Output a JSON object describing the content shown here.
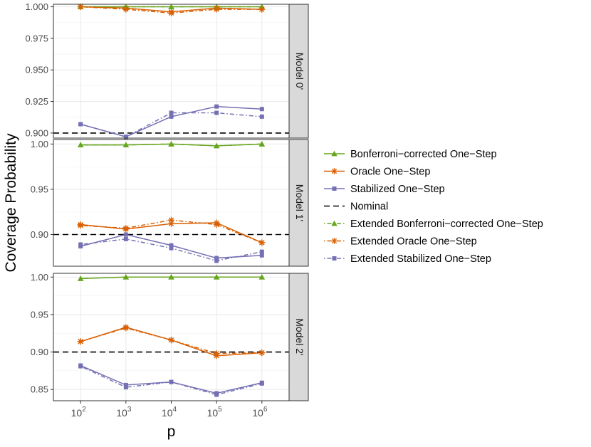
{
  "chart_data": {
    "type": "line",
    "ylabel": "Coverage Probability",
    "xlabel": "p",
    "x_values": [
      2,
      3,
      4,
      5,
      6
    ],
    "x_tick_base": "10",
    "x_tick_exponents": [
      "2",
      "3",
      "4",
      "5",
      "6"
    ],
    "nominal": 0.9,
    "colors": {
      "bonferroni": "#66a61e",
      "oracle": "#d95f02",
      "stabilized": "#7570b3",
      "nominal": "#000000",
      "strip": "#d9d9d9",
      "grid": "#ebebeb"
    },
    "legend": {
      "position": "right",
      "entries": [
        {
          "label": "Bonferroni−corrected One−Step",
          "key": "bonferroni",
          "style": "solid",
          "marker": "triangle"
        },
        {
          "label": "Oracle One−Step",
          "key": "oracle",
          "style": "solid",
          "marker": "star"
        },
        {
          "label": "Stabilized One−Step",
          "key": "stabilized",
          "style": "solid",
          "marker": "square"
        },
        {
          "label": "Nominal",
          "key": "nominal",
          "style": "dashed",
          "marker": "none"
        },
        {
          "label": "Extended Bonferroni−corrected One−Step",
          "key": "bonferroni",
          "style": "dotdash",
          "marker": "triangle"
        },
        {
          "label": "Extended Oracle One−Step",
          "key": "oracle",
          "style": "dotdash",
          "marker": "star"
        },
        {
          "label": "Extended Stabilized One−Step",
          "key": "stabilized",
          "style": "dotdash",
          "marker": "square"
        }
      ]
    },
    "panels": [
      {
        "strip_label": "Model 0'",
        "ylim": [
          0.896,
          1.002
        ],
        "yticks": [
          0.9,
          0.925,
          0.95,
          0.975,
          1.0
        ],
        "ytick_labels": [
          "0.900",
          "0.925",
          "0.950",
          "0.975",
          "1.000"
        ],
        "series": [
          {
            "name": "Bonferroni−corrected One−Step",
            "key": "bonferroni",
            "style": "solid",
            "marker": "triangle",
            "values": [
              1.0,
              1.0,
              1.0,
              1.0,
              1.0
            ]
          },
          {
            "name": "Oracle One−Step",
            "key": "oracle",
            "style": "solid",
            "marker": "star",
            "values": [
              1.0,
              0.999,
              0.996,
              0.999,
              0.998
            ]
          },
          {
            "name": "Stabilized One−Step",
            "key": "stabilized",
            "style": "solid",
            "marker": "square",
            "values": [
              0.907,
              0.897,
              0.913,
              0.921,
              0.919
            ]
          },
          {
            "name": "Extended Bonferroni−corrected One−Step",
            "key": "bonferroni",
            "style": "dotdash",
            "marker": "triangle",
            "values": [
              1.0,
              1.0,
              1.0,
              1.0,
              1.0
            ]
          },
          {
            "name": "Extended Oracle One−Step",
            "key": "oracle",
            "style": "dotdash",
            "marker": "star",
            "values": [
              1.0,
              0.998,
              0.995,
              0.998,
              0.998
            ]
          },
          {
            "name": "Extended Stabilized One−Step",
            "key": "stabilized",
            "style": "dotdash",
            "marker": "square",
            "values": [
              0.907,
              0.897,
              0.916,
              0.916,
              0.913
            ]
          }
        ]
      },
      {
        "strip_label": "Model 1'",
        "ylim": [
          0.865,
          1.005
        ],
        "yticks": [
          0.9,
          0.95,
          1.0
        ],
        "ytick_labels": [
          "0.90",
          "0.95",
          "1.00"
        ],
        "series": [
          {
            "name": "Bonferroni−corrected One−Step",
            "key": "bonferroni",
            "style": "solid",
            "marker": "triangle",
            "values": [
              0.999,
              0.999,
              1.0,
              0.998,
              1.0
            ]
          },
          {
            "name": "Oracle One−Step",
            "key": "oracle",
            "style": "solid",
            "marker": "star",
            "values": [
              0.911,
              0.906,
              0.912,
              0.913,
              0.891
            ]
          },
          {
            "name": "Stabilized One−Step",
            "key": "stabilized",
            "style": "solid",
            "marker": "square",
            "values": [
              0.887,
              0.9,
              0.888,
              0.874,
              0.877
            ]
          },
          {
            "name": "Extended Bonferroni−corrected One−Step",
            "key": "bonferroni",
            "style": "dotdash",
            "marker": "triangle",
            "values": [
              0.999,
              0.999,
              1.0,
              0.998,
              1.0
            ]
          },
          {
            "name": "Extended Oracle One−Step",
            "key": "oracle",
            "style": "dotdash",
            "marker": "star",
            "values": [
              0.91,
              0.907,
              0.916,
              0.911,
              0.891
            ]
          },
          {
            "name": "Extended Stabilized One−Step",
            "key": "stabilized",
            "style": "dotdash",
            "marker": "square",
            "values": [
              0.889,
              0.895,
              0.885,
              0.871,
              0.881
            ]
          }
        ]
      },
      {
        "strip_label": "Model 2'",
        "ylim": [
          0.835,
          1.005
        ],
        "yticks": [
          0.85,
          0.9,
          0.95,
          1.0
        ],
        "ytick_labels": [
          "0.85",
          "0.90",
          "0.95",
          "1.00"
        ],
        "series": [
          {
            "name": "Bonferroni−corrected One−Step",
            "key": "bonferroni",
            "style": "solid",
            "marker": "triangle",
            "values": [
              0.998,
              1.0,
              1.0,
              1.0,
              1.0
            ]
          },
          {
            "name": "Oracle One−Step",
            "key": "oracle",
            "style": "solid",
            "marker": "star",
            "values": [
              0.914,
              0.933,
              0.916,
              0.895,
              0.899
            ]
          },
          {
            "name": "Stabilized One−Step",
            "key": "stabilized",
            "style": "solid",
            "marker": "square",
            "values": [
              0.882,
              0.856,
              0.86,
              0.845,
              0.859
            ]
          },
          {
            "name": "Extended Bonferroni−corrected One−Step",
            "key": "bonferroni",
            "style": "dotdash",
            "marker": "triangle",
            "values": [
              0.998,
              1.0,
              1.0,
              1.0,
              1.0
            ]
          },
          {
            "name": "Extended Oracle One−Step",
            "key": "oracle",
            "style": "dotdash",
            "marker": "star",
            "values": [
              0.914,
              0.932,
              0.916,
              0.898,
              0.899
            ]
          },
          {
            "name": "Extended Stabilized One−Step",
            "key": "stabilized",
            "style": "dotdash",
            "marker": "square",
            "values": [
              0.881,
              0.853,
              0.86,
              0.843,
              0.858
            ]
          }
        ]
      }
    ]
  }
}
